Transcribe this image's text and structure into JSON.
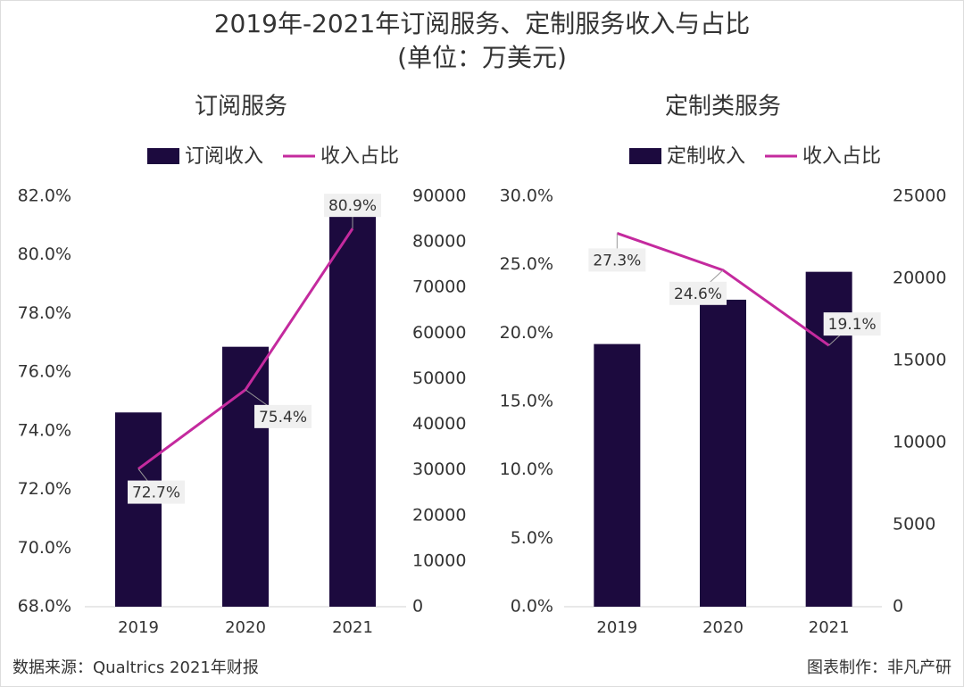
{
  "title": "2019年-2021年订阅服务、定制服务收入与占比",
  "subtitle": "(单位：万美元)",
  "chart_data": [
    {
      "type": "combo",
      "title": "订阅服务",
      "categories": [
        "2019",
        "2020",
        "2021"
      ],
      "legend": "top",
      "series": [
        {
          "name": "订阅收入",
          "type": "bar",
          "axis": "y2",
          "color": "#1c0a3e",
          "values": [
            42600,
            57000,
            86500
          ]
        },
        {
          "name": "收入占比",
          "type": "line",
          "color": "#c42a9e",
          "values": [
            72.7,
            75.4,
            80.9
          ],
          "value_labels": [
            "72.7%",
            "75.4%",
            "80.9%"
          ]
        }
      ],
      "ylim": [
        68,
        82
      ],
      "yticks": [
        {
          "value": 68,
          "label": "68.0%"
        },
        {
          "value": 70,
          "label": "70.0%"
        },
        {
          "value": 72,
          "label": "72.0%"
        },
        {
          "value": 74,
          "label": "74.0%"
        },
        {
          "value": 76,
          "label": "76.0%"
        },
        {
          "value": 78,
          "label": "78.0%"
        },
        {
          "value": 80,
          "label": "80.0%"
        },
        {
          "value": 82,
          "label": "82.0%"
        }
      ],
      "y2lim": [
        0,
        90000
      ],
      "y2ticks": [
        0,
        10000,
        20000,
        30000,
        40000,
        50000,
        60000,
        70000,
        80000,
        90000
      ]
    },
    {
      "type": "combo",
      "title": "定制类服务",
      "categories": [
        "2019",
        "2020",
        "2021"
      ],
      "legend": "top",
      "series": [
        {
          "name": "定制收入",
          "type": "bar",
          "axis": "y2",
          "color": "#1c0a3e",
          "values": [
            16000,
            18700,
            20400
          ]
        },
        {
          "name": "收入占比",
          "type": "line",
          "color": "#c42a9e",
          "values": [
            27.3,
            24.6,
            19.1
          ],
          "value_labels": [
            "27.3%",
            "24.6%",
            "19.1%"
          ]
        }
      ],
      "ylim": [
        0,
        30
      ],
      "yticks": [
        {
          "value": 0,
          "label": "0.0%"
        },
        {
          "value": 5,
          "label": "5.0%"
        },
        {
          "value": 10,
          "label": "10.0%"
        },
        {
          "value": 15,
          "label": "15.0%"
        },
        {
          "value": 20,
          "label": "20.0%"
        },
        {
          "value": 25,
          "label": "25.0%"
        },
        {
          "value": 30,
          "label": "30.0%"
        }
      ],
      "y2lim": [
        0,
        25000
      ],
      "y2ticks": [
        0,
        5000,
        10000,
        15000,
        20000,
        25000
      ]
    }
  ],
  "source": "数据来源：Qualtrics 2021年财报",
  "credit": "图表制作：非凡产研"
}
